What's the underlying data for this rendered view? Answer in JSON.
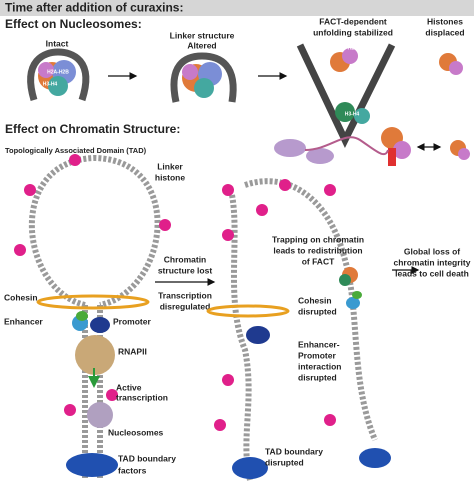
{
  "header": {
    "title": "Time after addition of curaxins:"
  },
  "nucleosomes": {
    "title": "Effect on Nucleosomes:",
    "stages": [
      {
        "label": [
          "Intact"
        ]
      },
      {
        "label": [
          "Linker structure",
          "Altered"
        ]
      },
      {
        "label": [
          "FACT-dependent",
          "unfolding stabilized"
        ]
      },
      {
        "label": [
          "Histones",
          "displaced"
        ]
      }
    ],
    "histone_labels": {
      "h2a_h2b": "H2A-H2B",
      "h3_h4": "H3-H4"
    }
  },
  "chromatin": {
    "title": "Effect on Chromatin Structure:",
    "tad": "Topologically Associated Domain (TAD)",
    "linker_histone": [
      "Linker",
      "histone"
    ],
    "structure_lost": [
      "Chromatin",
      "structure lost"
    ],
    "transcription": [
      "Transcription",
      "disregulated"
    ],
    "cohesin": "Cohesin",
    "enhancer": "Enhancer",
    "promoter": "Promoter",
    "rnapii": "RNAPII",
    "active_transcription": [
      "Active",
      "transcription"
    ],
    "nucleosomes": "Nucleosomes",
    "tad_boundary_factors": [
      "TAD boundary",
      "factors"
    ],
    "cohesin_disrupted": [
      "Cohesin",
      "disrupted"
    ],
    "ep_disrupted": [
      "Enhancer-",
      "Promoter",
      "interaction",
      "disrupted"
    ],
    "tad_boundary_disrupted": [
      "TAD boundary",
      "disrupted"
    ],
    "trapping": [
      "Trapping on chromatin",
      "leads to redistribution",
      "of FACT"
    ],
    "global_loss": [
      "Global loss of",
      "chromatin integrity",
      "leads to cell death"
    ]
  }
}
